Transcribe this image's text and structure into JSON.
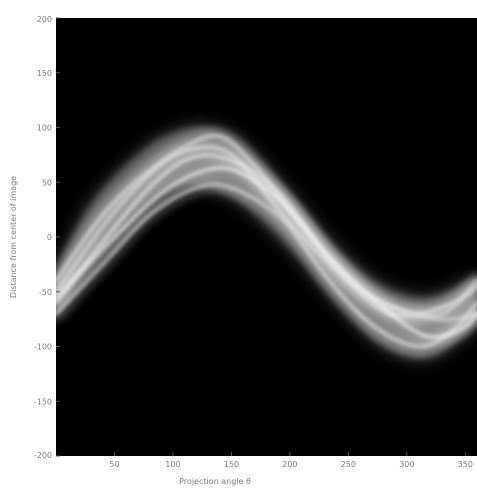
{
  "chart_data": {
    "type": "heatmap",
    "title": "",
    "xlabel": "Projection angle θ",
    "ylabel": "Distance from center of image",
    "xlim": [
      0,
      360
    ],
    "ylim": [
      -200,
      200
    ],
    "y_tick_labels": [
      "-200",
      "-150",
      "-100",
      "-50",
      "0",
      "50",
      "100",
      "150",
      "200"
    ],
    "y_tick_values": [
      -200,
      -150,
      -100,
      -50,
      0,
      50,
      100,
      150,
      200
    ],
    "x_tick_labels": [
      "50",
      "100",
      "150",
      "200",
      "250",
      "300",
      "350"
    ],
    "x_tick_values": [
      50,
      100,
      150,
      200,
      250,
      300,
      350
    ],
    "colormap": "gray",
    "background_color": "#000000",
    "band": {
      "upper_edge": [
        [
          0,
          -30
        ],
        [
          30,
          30
        ],
        [
          70,
          75
        ],
        [
          100,
          95
        ],
        [
          130,
          100
        ],
        [
          160,
          85
        ],
        [
          200,
          40
        ],
        [
          240,
          -10
        ],
        [
          280,
          -45
        ],
        [
          320,
          -55
        ],
        [
          360,
          -35
        ]
      ],
      "lower_edge": [
        [
          0,
          -75
        ],
        [
          30,
          -20
        ],
        [
          70,
          25
        ],
        [
          100,
          45
        ],
        [
          130,
          45
        ],
        [
          160,
          30
        ],
        [
          200,
          -10
        ],
        [
          240,
          -60
        ],
        [
          280,
          -100
        ],
        [
          320,
          -110
        ],
        [
          360,
          -80
        ]
      ]
    },
    "traces": [
      {
        "points": [
          [
            0,
            -60
          ],
          [
            40,
            -5
          ],
          [
            80,
            45
          ],
          [
            115,
            72
          ],
          [
            150,
            70
          ],
          [
            190,
            40
          ],
          [
            230,
            -15
          ],
          [
            270,
            -60
          ],
          [
            300,
            -72
          ],
          [
            340,
            -60
          ],
          [
            360,
            -45
          ]
        ],
        "brightness": 0.85
      },
      {
        "points": [
          [
            0,
            -40
          ],
          [
            40,
            20
          ],
          [
            80,
            60
          ],
          [
            115,
            80
          ],
          [
            150,
            75
          ],
          [
            190,
            25
          ],
          [
            230,
            -35
          ],
          [
            270,
            -80
          ],
          [
            310,
            -100
          ],
          [
            340,
            -85
          ],
          [
            360,
            -60
          ]
        ],
        "brightness": 0.8
      },
      {
        "points": [
          [
            0,
            -70
          ],
          [
            40,
            -25
          ],
          [
            80,
            20
          ],
          [
            120,
            45
          ],
          [
            150,
            45
          ],
          [
            190,
            20
          ],
          [
            230,
            -20
          ],
          [
            270,
            -55
          ],
          [
            310,
            -72
          ],
          [
            340,
            -75
          ],
          [
            360,
            -70
          ]
        ],
        "brightness": 0.7
      },
      {
        "points": [
          [
            0,
            -50
          ],
          [
            40,
            10
          ],
          [
            80,
            58
          ],
          [
            110,
            82
          ],
          [
            140,
            92
          ],
          [
            170,
            65
          ],
          [
            210,
            10
          ],
          [
            250,
            -40
          ],
          [
            290,
            -65
          ],
          [
            330,
            -70
          ],
          [
            360,
            -40
          ]
        ],
        "brightness": 0.75
      },
      {
        "points": [
          [
            0,
            -55
          ],
          [
            50,
            0
          ],
          [
            90,
            40
          ],
          [
            125,
            60
          ],
          [
            155,
            60
          ],
          [
            195,
            30
          ],
          [
            235,
            -20
          ],
          [
            275,
            -60
          ],
          [
            315,
            -90
          ],
          [
            345,
            -85
          ],
          [
            360,
            -70
          ]
        ],
        "brightness": 0.9
      }
    ]
  }
}
